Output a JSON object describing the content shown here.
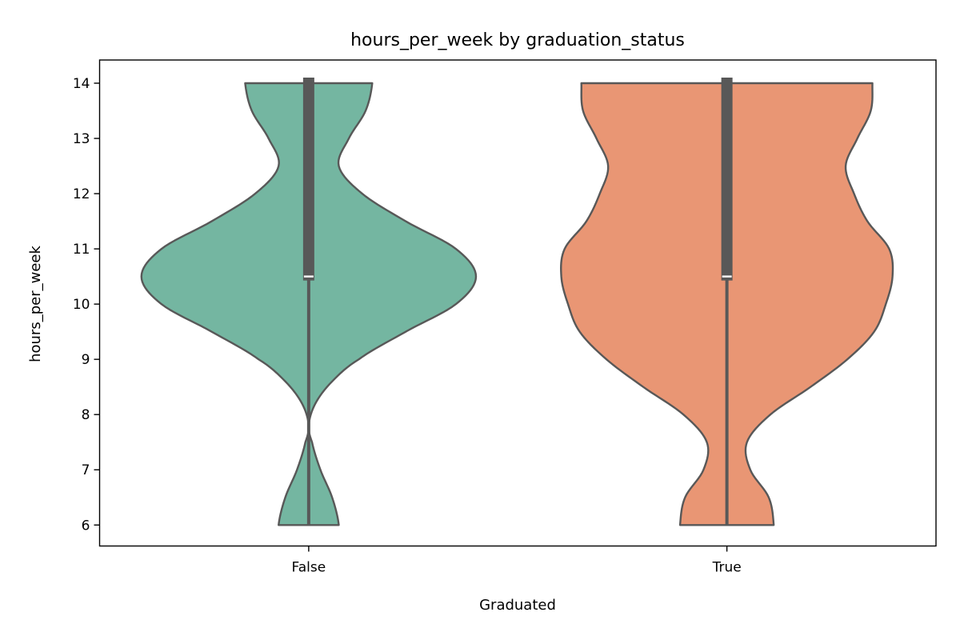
{
  "chart_data": {
    "type": "violin",
    "title": "hours_per_week by graduation_status",
    "xlabel": "Graduated",
    "ylabel": "hours_per_week",
    "ylim": [
      5.62,
      14.42
    ],
    "yticks": [
      6,
      7,
      8,
      9,
      10,
      11,
      12,
      13,
      14
    ],
    "categories": [
      "False",
      "True"
    ],
    "grid": false,
    "cut": 0,
    "violins": [
      {
        "category": "False",
        "color": "#74b6a1",
        "min": 6,
        "max": 14,
        "q1": 10.5,
        "median": 10.5,
        "q3": 14,
        "density_profile": [
          [
            6.0,
            0.18
          ],
          [
            6.5,
            0.14
          ],
          [
            7.0,
            0.07
          ],
          [
            7.5,
            0.02
          ],
          [
            7.8,
            0.0
          ],
          [
            8.2,
            0.04
          ],
          [
            8.6,
            0.14
          ],
          [
            9.0,
            0.3
          ],
          [
            9.5,
            0.58
          ],
          [
            10.0,
            0.88
          ],
          [
            10.5,
            1.0
          ],
          [
            11.0,
            0.88
          ],
          [
            11.5,
            0.58
          ],
          [
            12.0,
            0.32
          ],
          [
            12.5,
            0.18
          ],
          [
            13.0,
            0.24
          ],
          [
            13.5,
            0.34
          ],
          [
            14.0,
            0.38
          ]
        ]
      },
      {
        "category": "True",
        "color": "#e99674",
        "min": 6,
        "max": 14,
        "q1": 10.5,
        "median": 10.5,
        "q3": 14,
        "density_profile": [
          [
            6.0,
            0.28
          ],
          [
            6.5,
            0.25
          ],
          [
            7.0,
            0.14
          ],
          [
            7.5,
            0.12
          ],
          [
            8.0,
            0.26
          ],
          [
            8.5,
            0.5
          ],
          [
            9.0,
            0.72
          ],
          [
            9.5,
            0.88
          ],
          [
            10.0,
            0.95
          ],
          [
            10.5,
            0.99
          ],
          [
            11.0,
            0.97
          ],
          [
            11.5,
            0.84
          ],
          [
            12.0,
            0.76
          ],
          [
            12.5,
            0.71
          ],
          [
            13.0,
            0.78
          ],
          [
            13.5,
            0.86
          ],
          [
            14.0,
            0.87
          ]
        ]
      }
    ],
    "outline_color": "#585858",
    "box_color": "#585858",
    "median_color": "#ffffff"
  }
}
